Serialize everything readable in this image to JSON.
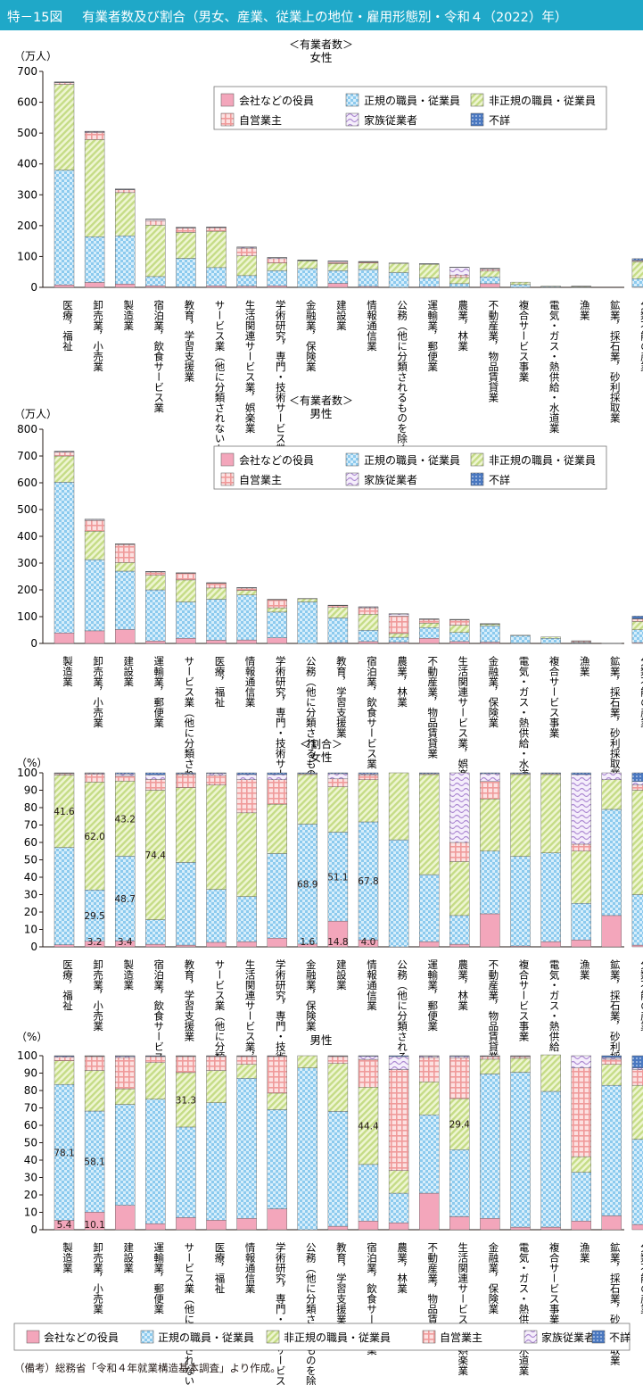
{
  "figure": {
    "number": "特－15図",
    "title": "有業者数及び割合（男女、産業、従業上の地位・雇用形態別・令和４（2022）年）",
    "note": "（備考）総務省「令和４年就業構造基本調査」より作成。"
  },
  "legend": {
    "items": [
      {
        "label": "会社などの役員",
        "pattern": "solid",
        "color": "#f3a6bb"
      },
      {
        "label": "正規の職員・従業員",
        "pattern": "check",
        "color": "#9ad0ee"
      },
      {
        "label": "非正規の職員・従業員",
        "pattern": "diag",
        "color": "#c9df8f"
      },
      {
        "label": "自営業主",
        "pattern": "grid",
        "color": "#f2a3a3"
      },
      {
        "label": "家族従業者",
        "pattern": "wave",
        "color": "#b89ad6"
      },
      {
        "label": "不詳",
        "pattern": "dots",
        "color": "#4d7fc4"
      }
    ]
  },
  "chart_data": [
    {
      "type": "bar",
      "stacked": true,
      "header": "＜有業者数＞",
      "title": "女性",
      "ylabel": "（万人）",
      "ylim": [
        0,
        700
      ],
      "yticks": [
        0,
        100,
        200,
        300,
        400,
        500,
        600,
        700
      ],
      "categories": [
        "医療，福祉",
        "卸売業，小売業",
        "製造業",
        "宿泊業，飲食サービス業",
        "教育，学習支援業",
        "サービス業（他に分類されないもの）",
        "生活関連サービス業，娯楽業",
        "学術研究，専門・技術サービス業",
        "金融業，保険業",
        "建設業",
        "情報通信業",
        "公務（他に分類されるものを除く）",
        "運輸業，郵便業",
        "農業，林業",
        "不動産業，物品賃貸業",
        "複合サービス事業",
        "電気・ガス・熱供給・水道業",
        "漁業",
        "鉱業，採石業，砂利採取業",
        "分類不能の産業"
      ],
      "series": [
        {
          "name": "会社などの役員",
          "values": [
            8,
            16,
            11,
            5,
            2,
            5,
            4,
            5,
            1,
            13,
            3,
            0,
            2,
            1,
            12,
            0,
            0,
            0,
            0,
            1
          ]
        },
        {
          "name": "正規の職員・従業員",
          "values": [
            372,
            148,
            156,
            30,
            92,
            59,
            34,
            49,
            60,
            41,
            55,
            48,
            28,
            11,
            22,
            9,
            2,
            1,
            0,
            27
          ]
        },
        {
          "name": "非正規の職員・従業員",
          "values": [
            278,
            315,
            140,
            167,
            84,
            118,
            64,
            25,
            25,
            23,
            21,
            30,
            45,
            20,
            19,
            8,
            2,
            2,
            0,
            55
          ]
        },
        {
          "name": "自営業主",
          "values": [
            5,
            23,
            9,
            14,
            14,
            11,
            25,
            14,
            1,
            4,
            3,
            0,
            1,
            8,
            6,
            0,
            0,
            0,
            0,
            3
          ]
        },
        {
          "name": "家族従業者",
          "values": [
            2,
            3,
            2,
            5,
            2,
            2,
            3,
            3,
            1,
            4,
            1,
            0,
            0,
            25,
            2,
            0,
            0,
            1,
            0,
            2
          ]
        },
        {
          "name": "不詳",
          "values": [
            1,
            1,
            1,
            1,
            1,
            1,
            1,
            1,
            1,
            1,
            1,
            1,
            1,
            1,
            1,
            0,
            0,
            0,
            0,
            5
          ]
        }
      ]
    },
    {
      "type": "bar",
      "stacked": true,
      "header": "＜有業者数＞",
      "title": "男性",
      "ylabel": "（万人）",
      "ylim": [
        0,
        800
      ],
      "yticks": [
        0,
        100,
        200,
        300,
        400,
        500,
        600,
        700,
        800
      ],
      "categories": [
        "製造業",
        "卸売業，小売業",
        "建設業",
        "運輸業，郵便業",
        "サービス業（他に分類されないもの）",
        "医療，福祉",
        "情報通信業",
        "学術研究，専門・技術サービス業",
        "公務（他に分類されるものを除く）",
        "教育，学習支援業",
        "宿泊業，飲食サービス業",
        "農業，林業",
        "不動産業，物品賃貸業",
        "生活関連サービス業，娯楽業",
        "金融業，保険業",
        "電気・ガス・熱供給・水道業",
        "複合サービス事業",
        "漁業",
        "鉱業，採石業，砂利採取業",
        "分類不能の産業"
      ],
      "series": [
        {
          "name": "会社などの役員",
          "values": [
            39,
            47,
            52,
            9,
            19,
            12,
            13,
            21,
            0,
            3,
            7,
            4,
            19,
            7,
            5,
            1,
            0,
            0,
            0,
            3
          ]
        },
        {
          "name": "正規の職員・従業員",
          "values": [
            563,
            266,
            218,
            191,
            136,
            153,
            168,
            96,
            155,
            92,
            42,
            19,
            40,
            34,
            61,
            28,
            19,
            3,
            1,
            48
          ]
        },
        {
          "name": "非正規の職員・従業員",
          "values": [
            98,
            106,
            32,
            54,
            82,
            42,
            17,
            16,
            12,
            39,
            60,
            14,
            17,
            27,
            6,
            2,
            5,
            1,
            0,
            31
          ]
        },
        {
          "name": "自営業主",
          "values": [
            14,
            40,
            67,
            13,
            25,
            18,
            9,
            30,
            0,
            7,
            24,
            65,
            13,
            20,
            1,
            0,
            0,
            5,
            0,
            9
          ]
        },
        {
          "name": "家族従業者",
          "values": [
            3,
            4,
            2,
            1,
            1,
            1,
            1,
            1,
            0,
            1,
            3,
            8,
            2,
            1,
            0,
            0,
            0,
            1,
            0,
            2
          ]
        },
        {
          "name": "不詳",
          "values": [
            1,
            1,
            1,
            1,
            1,
            1,
            1,
            1,
            1,
            1,
            1,
            1,
            1,
            1,
            1,
            0,
            0,
            0,
            0,
            9
          ]
        }
      ]
    },
    {
      "type": "bar",
      "stacked": true,
      "header": "＜割合＞",
      "title": "女性",
      "ylabel": "（%）",
      "ylim": [
        0,
        100
      ],
      "yticks": [
        0,
        10,
        20,
        30,
        40,
        50,
        60,
        70,
        80,
        90,
        100
      ],
      "categories": [
        "医療，福祉",
        "卸売業，小売業",
        "製造業",
        "宿泊業，飲食サービス業",
        "教育，学習支援業",
        "サービス業（他に分類されないもの）",
        "生活関連サービス業，娯楽業",
        "学術研究，専門・技術サービス業",
        "金融業，保険業",
        "建設業",
        "情報通信業",
        "公務（他に分類されるものを除く）",
        "運輸業，郵便業",
        "農業，林業",
        "不動産業，物品賃貸業",
        "複合サービス事業",
        "電気・ガス・熱供給・水道業",
        "漁業",
        "鉱業，採石業，砂利採取業",
        "分類不能の産業"
      ],
      "series": [
        {
          "name": "会社などの役員",
          "values": [
            1.2,
            3.2,
            3.4,
            1.5,
            1.0,
            2.6,
            3.0,
            5.0,
            1.6,
            14.8,
            4.0,
            0.0,
            3.0,
            1.5,
            19.0,
            0.5,
            3.0,
            4.0,
            18.0,
            1.0
          ]
        },
        {
          "name": "正規の職員・従業員",
          "values": [
            55.9,
            29.5,
            48.7,
            14.1,
            47.5,
            30.4,
            25.9,
            48.6,
            68.9,
            51.1,
            67.8,
            61.5,
            38.5,
            16.5,
            36.0,
            51.5,
            51.0,
            21.0,
            61.0,
            29.0
          ]
        },
        {
          "name": "非正規の職員・従業員",
          "values": [
            41.6,
            62.0,
            43.2,
            74.4,
            43.0,
            60.0,
            48.1,
            28.4,
            28.5,
            26.1,
            24.2,
            38.5,
            57.5,
            31.0,
            30.0,
            47.0,
            45.0,
            30.0,
            17.0,
            60.0
          ]
        },
        {
          "name": "自営業主",
          "values": [
            0.8,
            4.5,
            2.8,
            6.2,
            7.5,
            5.6,
            19.0,
            14.0,
            0.5,
            4.5,
            2.8,
            0.0,
            0.5,
            11.0,
            10.0,
            0.5,
            0.5,
            4.0,
            0.0,
            3.0
          ]
        },
        {
          "name": "家族従業者",
          "values": [
            0.3,
            0.6,
            1.2,
            2.6,
            0.5,
            1.0,
            3.0,
            3.0,
            0.0,
            3.0,
            0.6,
            0.0,
            0.0,
            40.0,
            4.5,
            0.0,
            0.0,
            40.0,
            4.0,
            2.0
          ]
        },
        {
          "name": "不詳",
          "values": [
            0.2,
            0.2,
            0.7,
            1.2,
            0.5,
            0.4,
            1.0,
            1.0,
            0.5,
            0.5,
            0.6,
            0.0,
            0.5,
            0.0,
            0.5,
            0.5,
            0.5,
            1.0,
            0.0,
            5.0
          ]
        }
      ],
      "data_labels": [
        {
          "category": 0,
          "series": 2,
          "text": "41.6"
        },
        {
          "category": 1,
          "series": 1,
          "text": "29.5"
        },
        {
          "category": 1,
          "series": 2,
          "text": "62.0"
        },
        {
          "category": 1,
          "series": 0,
          "text": "3.2"
        },
        {
          "category": 2,
          "series": 1,
          "text": "48.7"
        },
        {
          "category": 2,
          "series": 2,
          "text": "43.2"
        },
        {
          "category": 2,
          "series": 0,
          "text": "3.4"
        },
        {
          "category": 3,
          "series": 2,
          "text": "74.4"
        },
        {
          "category": 8,
          "series": 1,
          "text": "68.9"
        },
        {
          "category": 8,
          "series": 0,
          "text": "1.6"
        },
        {
          "category": 9,
          "series": 1,
          "text": "51.1"
        },
        {
          "category": 9,
          "series": 0,
          "text": "14.8"
        },
        {
          "category": 10,
          "series": 1,
          "text": "67.8"
        },
        {
          "category": 10,
          "series": 0,
          "text": "4.0"
        }
      ]
    },
    {
      "type": "bar",
      "stacked": true,
      "header": "",
      "title": "男性",
      "ylabel": "（%）",
      "ylim": [
        0,
        100
      ],
      "yticks": [
        0,
        10,
        20,
        30,
        40,
        50,
        60,
        70,
        80,
        90,
        100
      ],
      "categories": [
        "製造業",
        "卸売業，小売業",
        "建設業",
        "運輸業，郵便業",
        "サービス業（他に分類されないもの）",
        "医療，福祉",
        "情報通信業",
        "学術研究，専門・技術サービス業",
        "公務（他に分類されるものを除く）",
        "教育，学習支援業",
        "宿泊業，飲食サービス業",
        "農業，林業",
        "不動産業，物品賃貸業",
        "生活関連サービス業，娯楽業",
        "金融業，保険業",
        "電気・ガス・熱供給・水道業",
        "複合サービス事業",
        "漁業",
        "鉱業，採石業，砂利採取業",
        "分類不能の産業"
      ],
      "series": [
        {
          "name": "会社などの役員",
          "values": [
            5.4,
            10.1,
            14.0,
            3.5,
            7.0,
            5.5,
            6.5,
            12.0,
            0.0,
            2.0,
            5.0,
            4.0,
            21.0,
            7.5,
            6.5,
            1.5,
            1.5,
            5.0,
            8.0,
            3.0
          ]
        },
        {
          "name": "正規の職員・従業員",
          "values": [
            78.1,
            58.1,
            58.0,
            71.5,
            52.0,
            67.5,
            80.5,
            57.0,
            93.0,
            66.0,
            32.5,
            17.0,
            45.0,
            38.5,
            83.0,
            89.0,
            78.0,
            28.0,
            75.0,
            49.0
          ]
        },
        {
          "name": "非正規の職員・従業員",
          "values": [
            13.6,
            23.3,
            9.0,
            21.0,
            31.3,
            18.5,
            8.0,
            9.5,
            7.0,
            27.5,
            44.4,
            13.0,
            19.0,
            29.4,
            8.5,
            8.0,
            21.0,
            9.0,
            12.0,
            31.0
          ]
        },
        {
          "name": "自営業主",
          "values": [
            2.0,
            8.0,
            18.0,
            3.5,
            9.2,
            8.0,
            4.5,
            21.0,
            0.0,
            4.0,
            16.0,
            58.0,
            14.0,
            23.5,
            1.5,
            1.0,
            0.0,
            51.0,
            3.0,
            9.0
          ]
        },
        {
          "name": "家族従業者",
          "values": [
            0.5,
            0.3,
            0.7,
            0.2,
            0.3,
            0.3,
            0.3,
            0.3,
            0.0,
            0.3,
            1.8,
            7.5,
            0.8,
            0.8,
            0.3,
            0.3,
            0.0,
            7.0,
            1.0,
            1.0
          ]
        },
        {
          "name": "不詳",
          "values": [
            0.4,
            0.2,
            0.3,
            0.3,
            0.2,
            0.2,
            0.2,
            0.2,
            0.0,
            0.2,
            0.3,
            0.5,
            0.2,
            0.3,
            0.2,
            0.2,
            0.0,
            0.0,
            1.0,
            7.0
          ]
        }
      ],
      "data_labels": [
        {
          "category": 0,
          "series": 1,
          "text": "78.1"
        },
        {
          "category": 0,
          "series": 0,
          "text": "5.4"
        },
        {
          "category": 1,
          "series": 1,
          "text": "58.1"
        },
        {
          "category": 1,
          "series": 0,
          "text": "10.1"
        },
        {
          "category": 4,
          "series": 2,
          "text": "31.3"
        },
        {
          "category": 10,
          "series": 2,
          "text": "44.4"
        },
        {
          "category": 13,
          "series": 2,
          "text": "29.4"
        }
      ]
    }
  ]
}
